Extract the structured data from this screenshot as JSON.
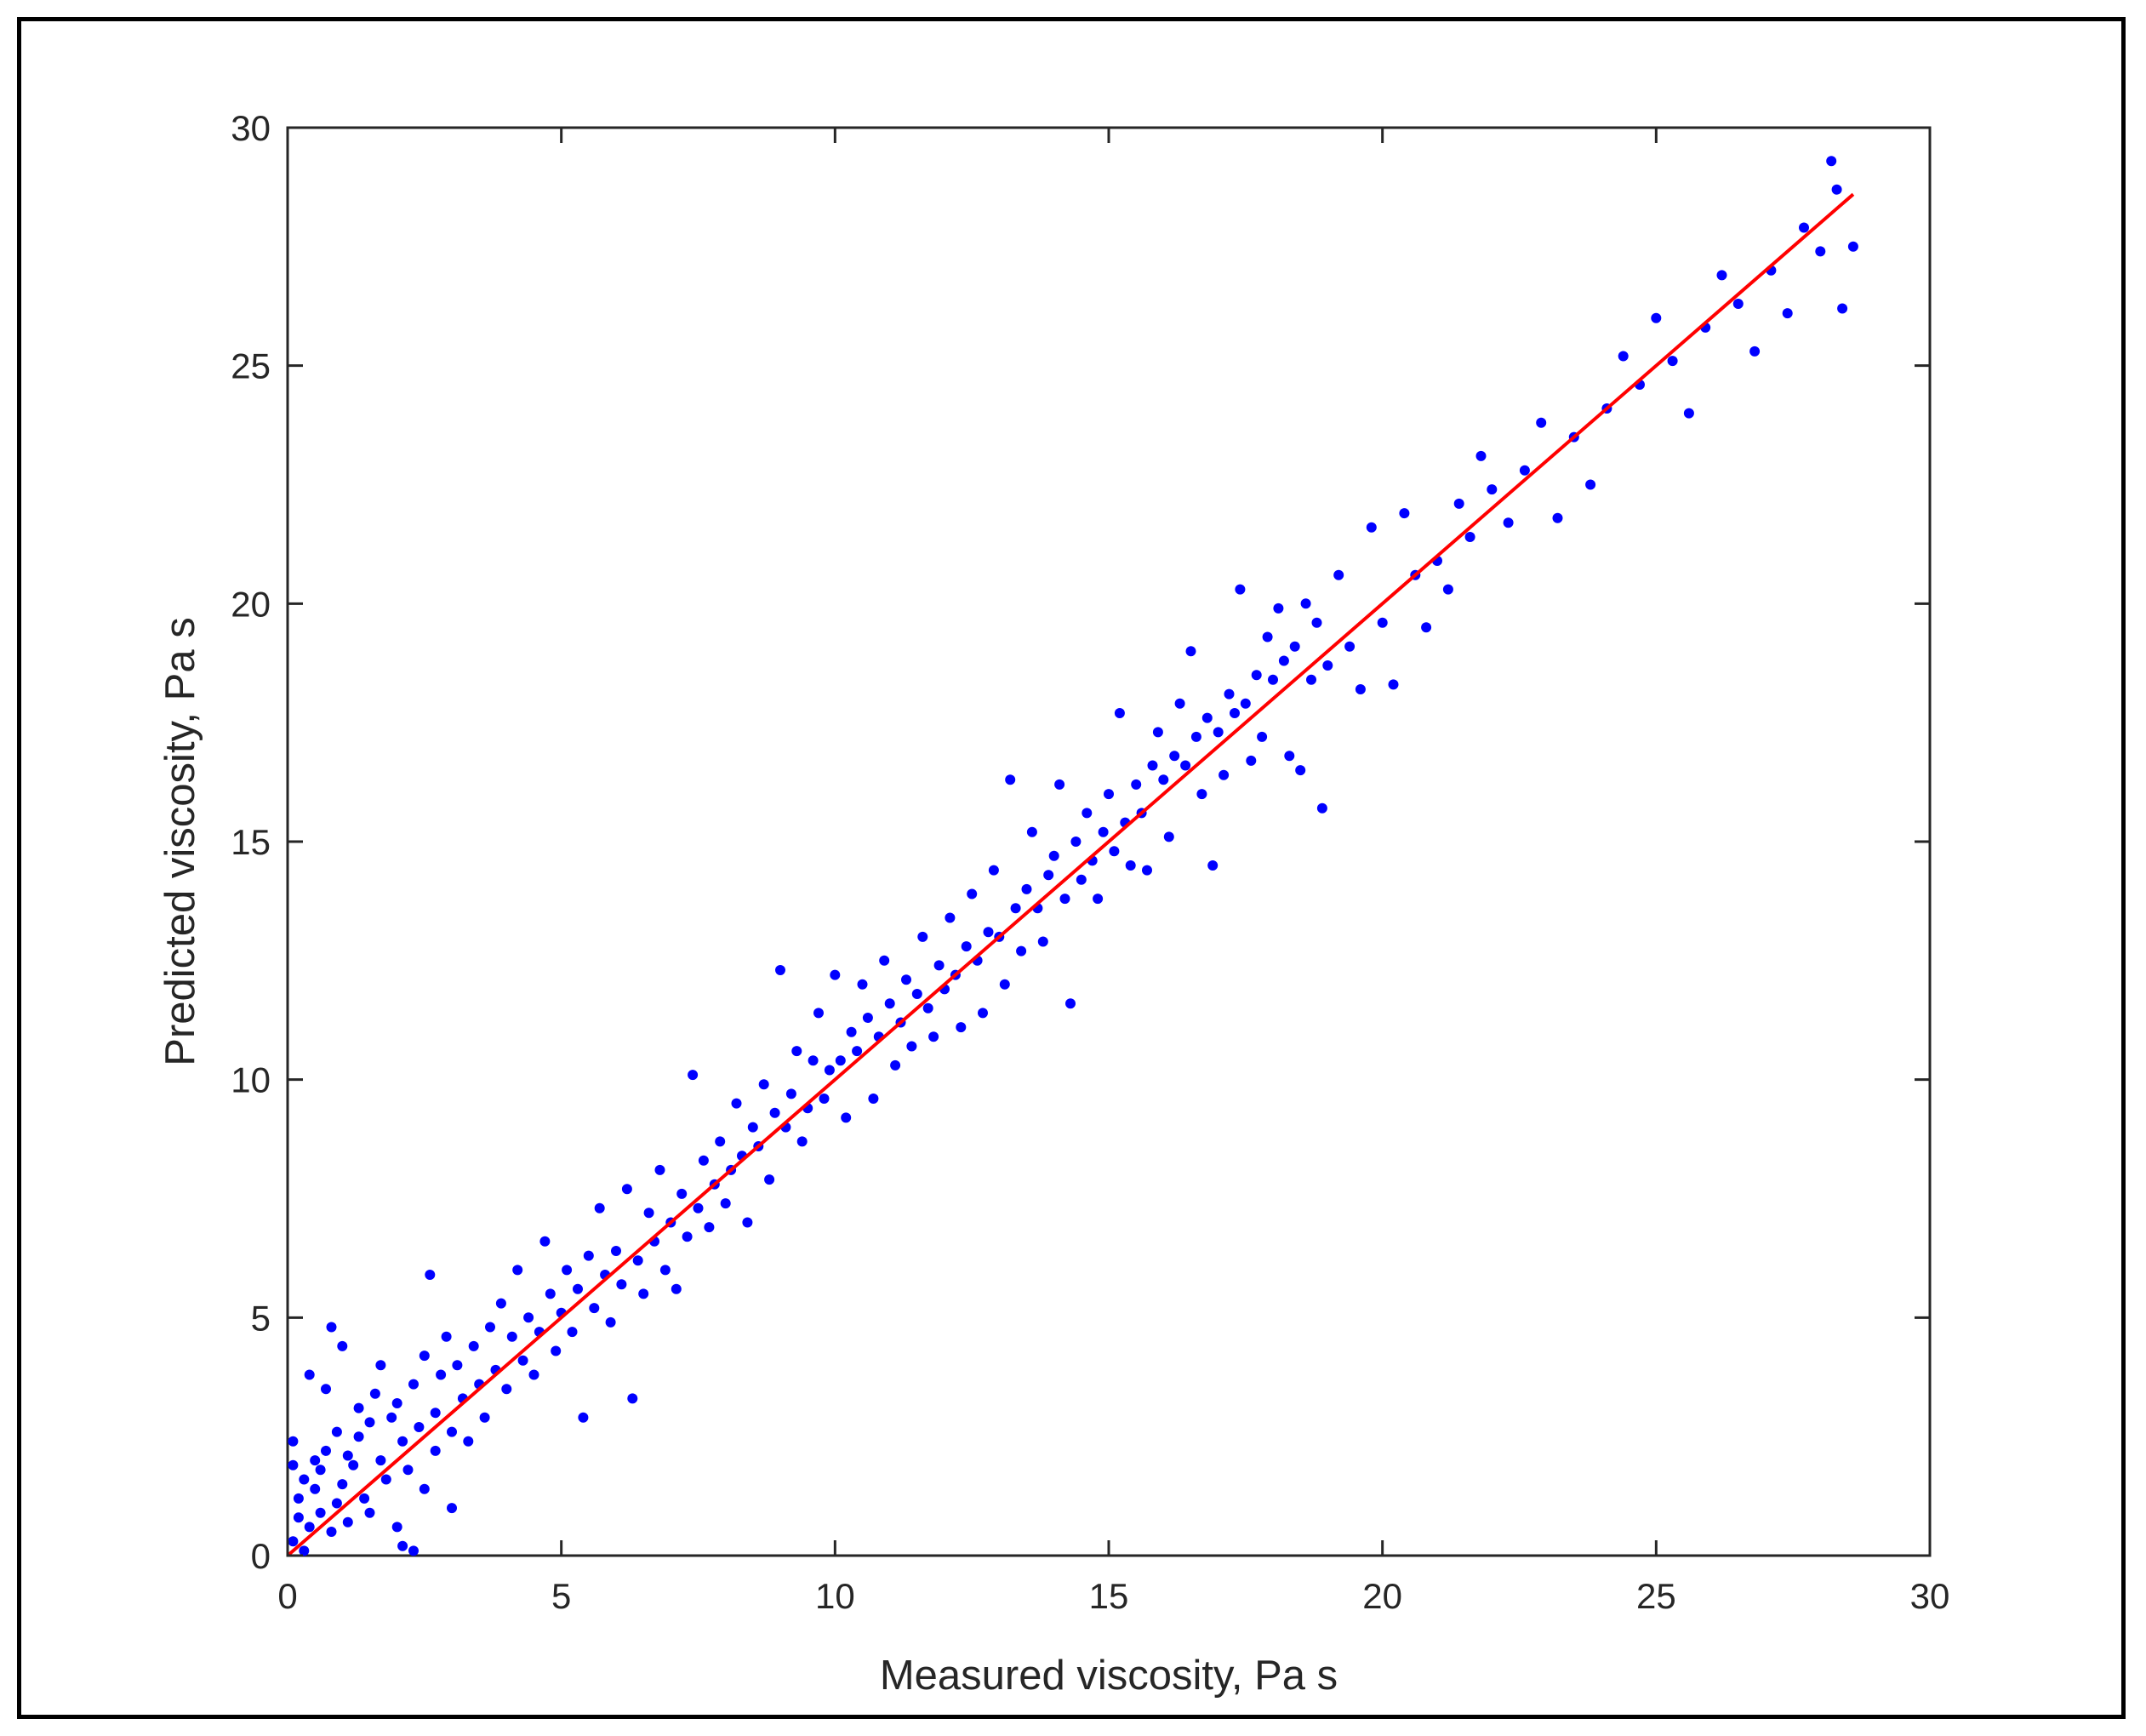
{
  "chart_data": {
    "type": "scatter",
    "title": "",
    "xlabel": "Measured viscosity, Pa s",
    "ylabel": "Predicted viscosity, Pa s",
    "xlim": [
      0,
      30
    ],
    "ylim": [
      0,
      30
    ],
    "xticks": [
      0,
      5,
      10,
      15,
      20,
      25,
      30
    ],
    "yticks": [
      0,
      5,
      10,
      15,
      20,
      25,
      30
    ],
    "xtick_labels": [
      "0",
      "5",
      "10",
      "15",
      "20",
      "25",
      "30"
    ],
    "ytick_labels": [
      "0",
      "5",
      "10",
      "15",
      "20",
      "25",
      "30"
    ],
    "grid": false,
    "legend": "none",
    "marker_color": "#0000ff",
    "line_color": "#ff0000",
    "fit_line": {
      "x": [
        0,
        28.6
      ],
      "y": [
        0,
        28.6
      ]
    },
    "points": [
      [
        0.1,
        0.3
      ],
      [
        0.1,
        1.9
      ],
      [
        0.1,
        2.4
      ],
      [
        0.2,
        0.8
      ],
      [
        0.2,
        1.2
      ],
      [
        0.3,
        0.1
      ],
      [
        0.3,
        1.6
      ],
      [
        0.4,
        3.8
      ],
      [
        0.4,
        0.6
      ],
      [
        0.5,
        1.4
      ],
      [
        0.5,
        2.0
      ],
      [
        0.6,
        0.9
      ],
      [
        0.6,
        1.8
      ],
      [
        0.7,
        2.2
      ],
      [
        0.7,
        3.5
      ],
      [
        0.8,
        0.5
      ],
      [
        0.8,
        4.8
      ],
      [
        0.9,
        1.1
      ],
      [
        0.9,
        2.6
      ],
      [
        1.0,
        4.4
      ],
      [
        1.0,
        1.5
      ],
      [
        1.1,
        0.7
      ],
      [
        1.1,
        2.1
      ],
      [
        1.2,
        1.9
      ],
      [
        1.3,
        2.5
      ],
      [
        1.3,
        3.1
      ],
      [
        1.4,
        1.2
      ],
      [
        1.5,
        2.8
      ],
      [
        1.5,
        0.9
      ],
      [
        1.6,
        3.4
      ],
      [
        1.7,
        2.0
      ],
      [
        1.7,
        4.0
      ],
      [
        1.8,
        1.6
      ],
      [
        1.9,
        2.9
      ],
      [
        2.0,
        0.6
      ],
      [
        2.0,
        3.2
      ],
      [
        2.1,
        0.2
      ],
      [
        2.1,
        2.4
      ],
      [
        2.2,
        1.8
      ],
      [
        2.3,
        3.6
      ],
      [
        2.3,
        0.1
      ],
      [
        2.4,
        2.7
      ],
      [
        2.5,
        4.2
      ],
      [
        2.5,
        1.4
      ],
      [
        2.6,
        5.9
      ],
      [
        2.7,
        3.0
      ],
      [
        2.7,
        2.2
      ],
      [
        2.8,
        3.8
      ],
      [
        2.9,
        4.6
      ],
      [
        3.0,
        1.0
      ],
      [
        3.0,
        2.6
      ],
      [
        3.1,
        4.0
      ],
      [
        3.2,
        3.3
      ],
      [
        3.3,
        2.4
      ],
      [
        3.4,
        4.4
      ],
      [
        3.5,
        3.6
      ],
      [
        3.6,
        2.9
      ],
      [
        3.7,
        4.8
      ],
      [
        3.8,
        3.9
      ],
      [
        3.9,
        5.3
      ],
      [
        4.0,
        3.5
      ],
      [
        4.1,
        4.6
      ],
      [
        4.2,
        6.0
      ],
      [
        4.3,
        4.1
      ],
      [
        4.4,
        5.0
      ],
      [
        4.5,
        3.8
      ],
      [
        4.6,
        4.7
      ],
      [
        4.7,
        6.6
      ],
      [
        4.8,
        5.5
      ],
      [
        4.9,
        4.3
      ],
      [
        5.0,
        5.1
      ],
      [
        5.1,
        6.0
      ],
      [
        5.2,
        4.7
      ],
      [
        5.3,
        5.6
      ],
      [
        5.4,
        2.9
      ],
      [
        5.5,
        6.3
      ],
      [
        5.6,
        5.2
      ],
      [
        5.7,
        7.3
      ],
      [
        5.8,
        5.9
      ],
      [
        5.9,
        4.9
      ],
      [
        6.0,
        6.4
      ],
      [
        6.1,
        5.7
      ],
      [
        6.2,
        7.7
      ],
      [
        6.3,
        3.3
      ],
      [
        6.4,
        6.2
      ],
      [
        6.5,
        5.5
      ],
      [
        6.6,
        7.2
      ],
      [
        6.7,
        6.6
      ],
      [
        6.8,
        8.1
      ],
      [
        6.9,
        6.0
      ],
      [
        7.0,
        7.0
      ],
      [
        7.1,
        5.6
      ],
      [
        7.2,
        7.6
      ],
      [
        7.3,
        6.7
      ],
      [
        7.4,
        10.1
      ],
      [
        7.5,
        7.3
      ],
      [
        7.6,
        8.3
      ],
      [
        7.7,
        6.9
      ],
      [
        7.8,
        7.8
      ],
      [
        7.9,
        8.7
      ],
      [
        8.0,
        7.4
      ],
      [
        8.1,
        8.1
      ],
      [
        8.2,
        9.5
      ],
      [
        8.3,
        8.4
      ],
      [
        8.4,
        7.0
      ],
      [
        8.5,
        9.0
      ],
      [
        8.6,
        8.6
      ],
      [
        8.7,
        9.9
      ],
      [
        8.8,
        7.9
      ],
      [
        8.9,
        9.3
      ],
      [
        9.0,
        12.3
      ],
      [
        9.1,
        9.0
      ],
      [
        9.2,
        9.7
      ],
      [
        9.3,
        10.6
      ],
      [
        9.4,
        8.7
      ],
      [
        9.5,
        9.4
      ],
      [
        9.6,
        10.4
      ],
      [
        9.7,
        11.4
      ],
      [
        9.8,
        9.6
      ],
      [
        9.9,
        10.2
      ],
      [
        10.0,
        12.2
      ],
      [
        10.1,
        10.4
      ],
      [
        10.2,
        9.2
      ],
      [
        10.3,
        11.0
      ],
      [
        10.4,
        10.6
      ],
      [
        10.5,
        12.0
      ],
      [
        10.6,
        11.3
      ],
      [
        10.7,
        9.6
      ],
      [
        10.8,
        10.9
      ],
      [
        10.9,
        12.5
      ],
      [
        11.0,
        11.6
      ],
      [
        11.1,
        10.3
      ],
      [
        11.2,
        11.2
      ],
      [
        11.3,
        12.1
      ],
      [
        11.4,
        10.7
      ],
      [
        11.5,
        11.8
      ],
      [
        11.6,
        13.0
      ],
      [
        11.7,
        11.5
      ],
      [
        11.8,
        10.9
      ],
      [
        11.9,
        12.4
      ],
      [
        12.0,
        11.9
      ],
      [
        12.1,
        13.4
      ],
      [
        12.2,
        12.2
      ],
      [
        12.3,
        11.1
      ],
      [
        12.4,
        12.8
      ],
      [
        12.5,
        13.9
      ],
      [
        12.6,
        12.5
      ],
      [
        12.7,
        11.4
      ],
      [
        12.8,
        13.1
      ],
      [
        12.9,
        14.4
      ],
      [
        13.0,
        13.0
      ],
      [
        13.1,
        12.0
      ],
      [
        13.2,
        16.3
      ],
      [
        13.3,
        13.6
      ],
      [
        13.4,
        12.7
      ],
      [
        13.5,
        14.0
      ],
      [
        13.6,
        15.2
      ],
      [
        13.7,
        13.6
      ],
      [
        13.8,
        12.9
      ],
      [
        13.9,
        14.3
      ],
      [
        14.0,
        14.7
      ],
      [
        14.1,
        16.2
      ],
      [
        14.2,
        13.8
      ],
      [
        14.3,
        11.6
      ],
      [
        14.4,
        15.0
      ],
      [
        14.5,
        14.2
      ],
      [
        14.6,
        15.6
      ],
      [
        14.7,
        14.6
      ],
      [
        14.8,
        13.8
      ],
      [
        14.9,
        15.2
      ],
      [
        15.0,
        16.0
      ],
      [
        15.1,
        14.8
      ],
      [
        15.2,
        17.7
      ],
      [
        15.3,
        15.4
      ],
      [
        15.4,
        14.5
      ],
      [
        15.5,
        16.2
      ],
      [
        15.6,
        15.6
      ],
      [
        15.7,
        14.4
      ],
      [
        15.8,
        16.6
      ],
      [
        15.9,
        17.3
      ],
      [
        16.0,
        16.3
      ],
      [
        16.1,
        15.1
      ],
      [
        16.2,
        16.8
      ],
      [
        16.3,
        17.9
      ],
      [
        16.4,
        16.6
      ],
      [
        16.5,
        19.0
      ],
      [
        16.6,
        17.2
      ],
      [
        16.7,
        16.0
      ],
      [
        16.8,
        17.6
      ],
      [
        16.9,
        14.5
      ],
      [
        17.0,
        17.3
      ],
      [
        17.1,
        16.4
      ],
      [
        17.2,
        18.1
      ],
      [
        17.3,
        17.7
      ],
      [
        17.4,
        20.3
      ],
      [
        17.5,
        17.9
      ],
      [
        17.6,
        16.7
      ],
      [
        17.7,
        18.5
      ],
      [
        17.8,
        17.2
      ],
      [
        17.9,
        19.3
      ],
      [
        18.0,
        18.4
      ],
      [
        18.1,
        19.9
      ],
      [
        18.2,
        18.8
      ],
      [
        18.3,
        16.8
      ],
      [
        18.4,
        19.1
      ],
      [
        18.5,
        16.5
      ],
      [
        18.6,
        20.0
      ],
      [
        18.7,
        18.4
      ],
      [
        18.8,
        19.6
      ],
      [
        18.9,
        15.7
      ],
      [
        19.0,
        18.7
      ],
      [
        19.2,
        20.6
      ],
      [
        19.4,
        19.1
      ],
      [
        19.6,
        18.2
      ],
      [
        19.8,
        21.6
      ],
      [
        20.0,
        19.6
      ],
      [
        20.2,
        18.3
      ],
      [
        20.4,
        21.9
      ],
      [
        20.6,
        20.6
      ],
      [
        20.8,
        19.5
      ],
      [
        21.0,
        20.9
      ],
      [
        21.2,
        20.3
      ],
      [
        21.4,
        22.1
      ],
      [
        21.6,
        21.4
      ],
      [
        21.8,
        23.1
      ],
      [
        22.0,
        22.4
      ],
      [
        22.3,
        21.7
      ],
      [
        22.6,
        22.8
      ],
      [
        22.9,
        23.8
      ],
      [
        23.2,
        21.8
      ],
      [
        23.5,
        23.5
      ],
      [
        23.8,
        22.5
      ],
      [
        24.1,
        24.1
      ],
      [
        24.4,
        25.2
      ],
      [
        24.7,
        24.6
      ],
      [
        25.0,
        26.0
      ],
      [
        25.3,
        25.1
      ],
      [
        25.6,
        24.0
      ],
      [
        25.9,
        25.8
      ],
      [
        26.2,
        26.9
      ],
      [
        26.5,
        26.3
      ],
      [
        26.8,
        25.3
      ],
      [
        27.1,
        27.0
      ],
      [
        27.4,
        26.1
      ],
      [
        27.7,
        27.9
      ],
      [
        28.0,
        27.4
      ],
      [
        28.2,
        29.3
      ],
      [
        28.3,
        28.7
      ],
      [
        28.4,
        26.2
      ],
      [
        28.6,
        27.5
      ]
    ]
  }
}
